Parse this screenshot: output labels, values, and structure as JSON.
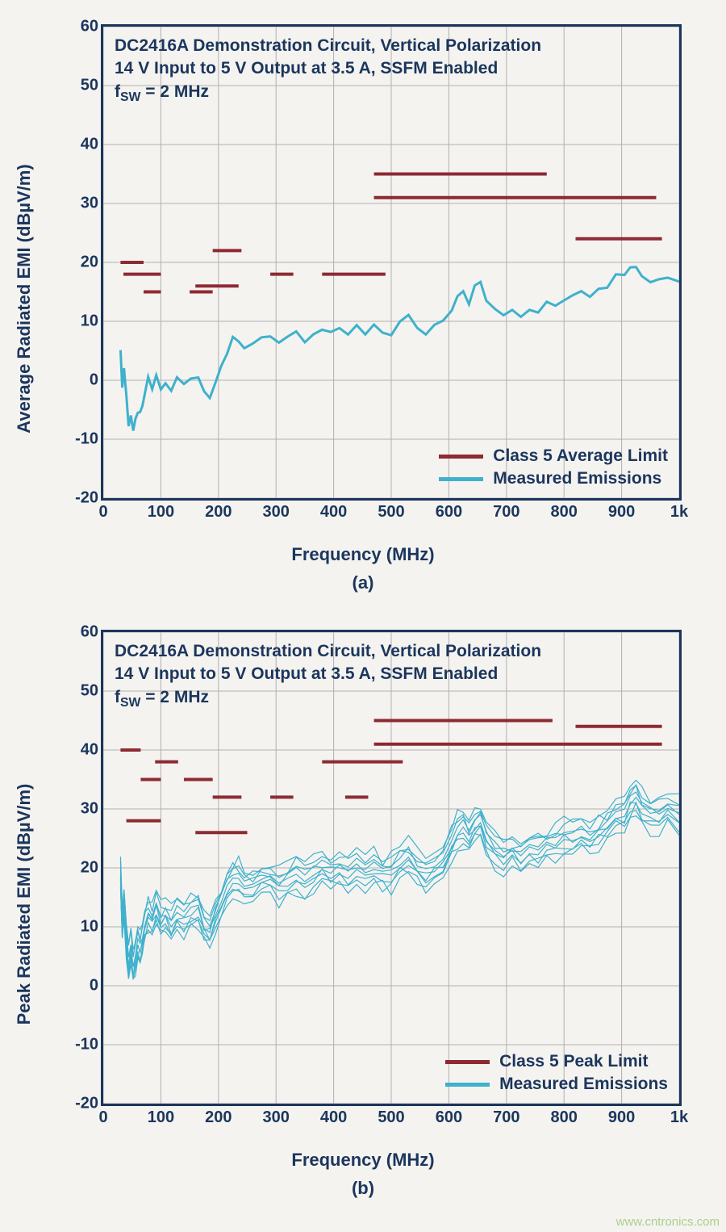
{
  "colors": {
    "text": "#1b365d",
    "grid": "#b0b0b0",
    "border": "#1b365d",
    "limit": "#8d2a32",
    "measured": "#3fb1cc",
    "watermark": "#a8d08d",
    "bg": "#f5f3f0"
  },
  "watermark": "www.cntronics.com",
  "chartA": {
    "type": "line",
    "ylabel": "Average Radiated EMI (dBµV/m)",
    "xlabel": "Frequency (MHz)",
    "sublabel": "(a)",
    "xlim": [
      0,
      1000
    ],
    "ylim": [
      -20,
      60
    ],
    "xticks": [
      0,
      100,
      200,
      300,
      400,
      500,
      600,
      700,
      800,
      900,
      1000
    ],
    "xticklabels": [
      "0",
      "100",
      "200",
      "300",
      "400",
      "500",
      "600",
      "700",
      "800",
      "900",
      "1k"
    ],
    "yticks": [
      -20,
      -10,
      0,
      10,
      20,
      30,
      40,
      50,
      60
    ],
    "label_fontsize": 22,
    "tick_fontsize": 20,
    "annot_fontsize": 21,
    "grid": true,
    "grid_color": "#b0b0b0",
    "border_color": "#1b365d",
    "border_width": 3,
    "annotation": [
      "DC2416A Demonstration Circuit, Vertical Polarization",
      "14 V Input to 5 V Output at 3.5 A, SSFM Enabled",
      "f_SW = 2 MHz"
    ],
    "legend": [
      {
        "label": "Class 5 Average Limit",
        "color": "#8d2a32",
        "width": 5
      },
      {
        "label": "Measured Emissions",
        "color": "#3fb1cc",
        "width": 5
      }
    ],
    "limit_color": "#8d2a32",
    "limit_width": 4,
    "limit_segments": [
      {
        "x1": 30,
        "x2": 70,
        "y": 20
      },
      {
        "x1": 35,
        "x2": 100,
        "y": 18
      },
      {
        "x1": 70,
        "x2": 100,
        "y": 15
      },
      {
        "x1": 150,
        "x2": 190,
        "y": 15
      },
      {
        "x1": 160,
        "x2": 235,
        "y": 16
      },
      {
        "x1": 190,
        "x2": 240,
        "y": 22
      },
      {
        "x1": 290,
        "x2": 330,
        "y": 18
      },
      {
        "x1": 380,
        "x2": 490,
        "y": 18
      },
      {
        "x1": 470,
        "x2": 770,
        "y": 35
      },
      {
        "x1": 470,
        "x2": 960,
        "y": 31
      },
      {
        "x1": 820,
        "x2": 970,
        "y": 24
      }
    ],
    "measured_color": "#3fb1cc",
    "measured_width": 3,
    "measured": [
      [
        30,
        5
      ],
      [
        33,
        -1
      ],
      [
        36,
        2
      ],
      [
        40,
        -3
      ],
      [
        44,
        -8
      ],
      [
        48,
        -6
      ],
      [
        52,
        -9
      ],
      [
        56,
        -7
      ],
      [
        60,
        -5
      ],
      [
        64,
        -6
      ],
      [
        68,
        -4
      ],
      [
        72,
        -2
      ],
      [
        78,
        0
      ],
      [
        85,
        -1
      ],
      [
        92,
        1
      ],
      [
        100,
        -1
      ],
      [
        108,
        0
      ],
      [
        118,
        -2
      ],
      [
        128,
        0
      ],
      [
        140,
        -1
      ],
      [
        152,
        0
      ],
      [
        165,
        1
      ],
      [
        175,
        -2
      ],
      [
        185,
        -3
      ],
      [
        195,
        0
      ],
      [
        205,
        2
      ],
      [
        215,
        5
      ],
      [
        225,
        7
      ],
      [
        235,
        7
      ],
      [
        245,
        6
      ],
      [
        260,
        6
      ],
      [
        275,
        7
      ],
      [
        290,
        7
      ],
      [
        305,
        6
      ],
      [
        320,
        7
      ],
      [
        335,
        8
      ],
      [
        350,
        7
      ],
      [
        365,
        8
      ],
      [
        380,
        9
      ],
      [
        395,
        8
      ],
      [
        410,
        9
      ],
      [
        425,
        8
      ],
      [
        440,
        9
      ],
      [
        455,
        8
      ],
      [
        470,
        9
      ],
      [
        485,
        8
      ],
      [
        500,
        8
      ],
      [
        515,
        10
      ],
      [
        530,
        11
      ],
      [
        545,
        9
      ],
      [
        560,
        8
      ],
      [
        575,
        9
      ],
      [
        590,
        10
      ],
      [
        605,
        12
      ],
      [
        615,
        14
      ],
      [
        625,
        15
      ],
      [
        635,
        13
      ],
      [
        645,
        16
      ],
      [
        655,
        17
      ],
      [
        665,
        14
      ],
      [
        680,
        12
      ],
      [
        695,
        11
      ],
      [
        710,
        12
      ],
      [
        725,
        11
      ],
      [
        740,
        12
      ],
      [
        755,
        12
      ],
      [
        770,
        13
      ],
      [
        785,
        13
      ],
      [
        800,
        14
      ],
      [
        815,
        14
      ],
      [
        830,
        15
      ],
      [
        845,
        14
      ],
      [
        860,
        15
      ],
      [
        875,
        16
      ],
      [
        890,
        18
      ],
      [
        905,
        18
      ],
      [
        915,
        19
      ],
      [
        925,
        19
      ],
      [
        935,
        18
      ],
      [
        950,
        17
      ],
      [
        965,
        17
      ],
      [
        980,
        18
      ],
      [
        1000,
        17
      ]
    ]
  },
  "chartB": {
    "type": "line",
    "ylabel": "Peak Radiated EMI (dBµV/m)",
    "xlabel": "Frequency (MHz)",
    "sublabel": "(b)",
    "xlim": [
      0,
      1000
    ],
    "ylim": [
      -20,
      60
    ],
    "xticks": [
      0,
      100,
      200,
      300,
      400,
      500,
      600,
      700,
      800,
      900,
      1000
    ],
    "xticklabels": [
      "0",
      "100",
      "200",
      "300",
      "400",
      "500",
      "600",
      "700",
      "800",
      "900",
      "1k"
    ],
    "yticks": [
      -20,
      -10,
      0,
      10,
      20,
      30,
      40,
      50,
      60
    ],
    "label_fontsize": 22,
    "tick_fontsize": 20,
    "annot_fontsize": 21,
    "grid": true,
    "grid_color": "#b0b0b0",
    "border_color": "#1b365d",
    "border_width": 3,
    "annotation": [
      "DC2416A Demonstration Circuit, Vertical Polarization",
      "14 V Input to 5 V Output at 3.5 A, SSFM Enabled",
      "f_SW = 2 MHz"
    ],
    "legend": [
      {
        "label": "Class 5 Peak Limit",
        "color": "#8d2a32",
        "width": 5
      },
      {
        "label": "Measured Emissions",
        "color": "#3fb1cc",
        "width": 5
      }
    ],
    "limit_color": "#8d2a32",
    "limit_width": 4,
    "limit_segments": [
      {
        "x1": 30,
        "x2": 65,
        "y": 40
      },
      {
        "x1": 65,
        "x2": 100,
        "y": 35
      },
      {
        "x1": 40,
        "x2": 100,
        "y": 28
      },
      {
        "x1": 90,
        "x2": 130,
        "y": 38
      },
      {
        "x1": 140,
        "x2": 190,
        "y": 35
      },
      {
        "x1": 160,
        "x2": 250,
        "y": 26
      },
      {
        "x1": 190,
        "x2": 240,
        "y": 32
      },
      {
        "x1": 290,
        "x2": 330,
        "y": 32
      },
      {
        "x1": 380,
        "x2": 520,
        "y": 38
      },
      {
        "x1": 420,
        "x2": 460,
        "y": 32
      },
      {
        "x1": 470,
        "x2": 780,
        "y": 45
      },
      {
        "x1": 470,
        "x2": 970,
        "y": 41
      },
      {
        "x1": 820,
        "x2": 970,
        "y": 44
      }
    ],
    "measured_color": "#3fb1cc",
    "measured_width": 3,
    "measured_noise": 3.5,
    "measured": [
      [
        30,
        19
      ],
      [
        33,
        10
      ],
      [
        36,
        14
      ],
      [
        40,
        8
      ],
      [
        44,
        4
      ],
      [
        48,
        6
      ],
      [
        52,
        3
      ],
      [
        56,
        5
      ],
      [
        60,
        7
      ],
      [
        64,
        6
      ],
      [
        68,
        8
      ],
      [
        72,
        10
      ],
      [
        78,
        12
      ],
      [
        85,
        11
      ],
      [
        92,
        13
      ],
      [
        100,
        11
      ],
      [
        108,
        12
      ],
      [
        118,
        10
      ],
      [
        128,
        12
      ],
      [
        140,
        11
      ],
      [
        152,
        12
      ],
      [
        165,
        13
      ],
      [
        175,
        10
      ],
      [
        185,
        9
      ],
      [
        195,
        12
      ],
      [
        205,
        14
      ],
      [
        215,
        17
      ],
      [
        225,
        18
      ],
      [
        235,
        18
      ],
      [
        245,
        17
      ],
      [
        260,
        17
      ],
      [
        275,
        18
      ],
      [
        290,
        18
      ],
      [
        305,
        17
      ],
      [
        320,
        18
      ],
      [
        335,
        19
      ],
      [
        350,
        18
      ],
      [
        365,
        19
      ],
      [
        380,
        20
      ],
      [
        395,
        19
      ],
      [
        410,
        20
      ],
      [
        425,
        19
      ],
      [
        440,
        20
      ],
      [
        455,
        19
      ],
      [
        470,
        20
      ],
      [
        485,
        19
      ],
      [
        500,
        19
      ],
      [
        515,
        21
      ],
      [
        530,
        22
      ],
      [
        545,
        20
      ],
      [
        560,
        19
      ],
      [
        575,
        20
      ],
      [
        590,
        21
      ],
      [
        605,
        24
      ],
      [
        615,
        26
      ],
      [
        625,
        27
      ],
      [
        635,
        25
      ],
      [
        645,
        27
      ],
      [
        655,
        28
      ],
      [
        665,
        25
      ],
      [
        680,
        23
      ],
      [
        695,
        22
      ],
      [
        710,
        23
      ],
      [
        725,
        22
      ],
      [
        740,
        23
      ],
      [
        755,
        23
      ],
      [
        770,
        24
      ],
      [
        785,
        24
      ],
      [
        800,
        25
      ],
      [
        815,
        25
      ],
      [
        830,
        26
      ],
      [
        845,
        25
      ],
      [
        860,
        26
      ],
      [
        875,
        27
      ],
      [
        890,
        29
      ],
      [
        905,
        29
      ],
      [
        915,
        31
      ],
      [
        925,
        32
      ],
      [
        935,
        30
      ],
      [
        950,
        29
      ],
      [
        965,
        29
      ],
      [
        980,
        30
      ],
      [
        1000,
        29
      ]
    ]
  }
}
